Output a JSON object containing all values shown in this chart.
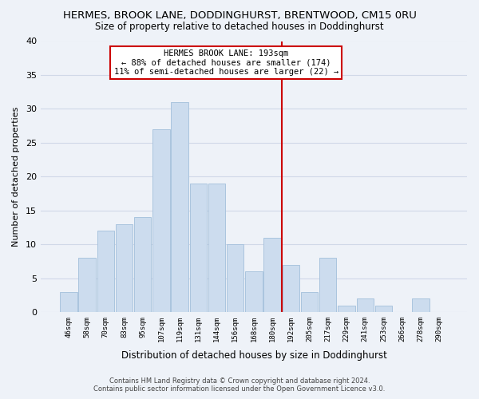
{
  "title": "HERMES, BROOK LANE, DODDINGHURST, BRENTWOOD, CM15 0RU",
  "subtitle": "Size of property relative to detached houses in Doddinghurst",
  "xlabel": "Distribution of detached houses by size in Doddinghurst",
  "ylabel": "Number of detached properties",
  "bin_labels": [
    "46sqm",
    "58sqm",
    "70sqm",
    "83sqm",
    "95sqm",
    "107sqm",
    "119sqm",
    "131sqm",
    "144sqm",
    "156sqm",
    "168sqm",
    "180sqm",
    "192sqm",
    "205sqm",
    "217sqm",
    "229sqm",
    "241sqm",
    "253sqm",
    "266sqm",
    "278sqm",
    "290sqm"
  ],
  "bar_values": [
    3,
    8,
    12,
    13,
    14,
    27,
    31,
    19,
    19,
    10,
    6,
    11,
    7,
    3,
    8,
    1,
    2,
    1,
    0,
    2,
    0
  ],
  "bar_color": "#ccdcee",
  "bar_edge_color": "#aac4de",
  "vline_color": "#cc0000",
  "annotation_title": "HERMES BROOK LANE: 193sqm",
  "annotation_line1": "← 88% of detached houses are smaller (174)",
  "annotation_line2": "11% of semi-detached houses are larger (22) →",
  "annotation_box_color": "#ffffff",
  "annotation_box_edge": "#cc0000",
  "ylim": [
    0,
    40
  ],
  "yticks": [
    0,
    5,
    10,
    15,
    20,
    25,
    30,
    35,
    40
  ],
  "grid_color": "#d0d8e8",
  "background_color": "#eef2f8",
  "footer_line1": "Contains HM Land Registry data © Crown copyright and database right 2024.",
  "footer_line2": "Contains public sector information licensed under the Open Government Licence v3.0."
}
